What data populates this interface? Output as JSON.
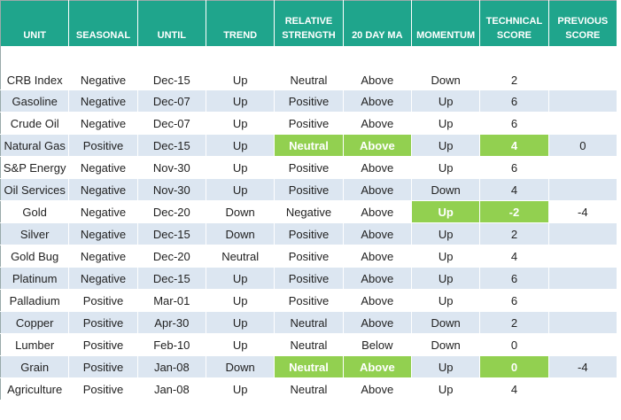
{
  "table": {
    "header": [
      "UNIT",
      "SEASONAL",
      "UNTIL",
      "TREND",
      "RELATIVE STRENGTH",
      "20 DAY MA",
      "MOMENTUM",
      "TECHNICAL SCORE",
      "PREVIOUS SCORE"
    ],
    "rows": [
      [
        "CRB Index",
        "Negative",
        "Dec-15",
        "Up",
        "Neutral",
        "Above",
        "Down",
        "2",
        null
      ],
      [
        "Gasoline",
        "Negative",
        "Dec-07",
        "Up",
        "Positive",
        "Above",
        "Up",
        "6",
        null
      ],
      [
        "Crude Oil",
        "Negative",
        "Dec-07",
        "Up",
        "Positive",
        "Above",
        "Up",
        "6",
        null
      ],
      [
        "Natural Gas",
        "Positive",
        "Dec-15",
        "Up",
        "Neutral",
        "Above",
        "Up",
        "4",
        "0"
      ],
      [
        "S&P Energy",
        "Negative",
        "Nov-30",
        "Up",
        "Positive",
        "Above",
        "Up",
        "6",
        null
      ],
      [
        "Oil Services",
        "Negative",
        "Nov-30",
        "Up",
        "Positive",
        "Above",
        "Down",
        "4",
        null
      ],
      [
        "Gold",
        "Negative",
        "Dec-20",
        "Down",
        "Negative",
        "Above",
        "Up",
        "-2",
        "-4"
      ],
      [
        "Silver",
        "Negative",
        "Dec-15",
        "Down",
        "Positive",
        "Above",
        "Up",
        "2",
        null
      ],
      [
        "Gold Bug",
        "Negative",
        "Dec-20",
        "Neutral",
        "Positive",
        "Above",
        "Up",
        "4",
        null
      ],
      [
        "Platinum",
        "Negative",
        "Dec-15",
        "Up",
        "Positive",
        "Above",
        "Up",
        "6",
        null
      ],
      [
        "Palladium",
        "Positive",
        "Mar-01",
        "Up",
        "Positive",
        "Above",
        "Up",
        "6",
        null
      ],
      [
        "Copper",
        "Positive",
        "Apr-30",
        "Up",
        "Neutral",
        "Above",
        "Down",
        "2",
        null
      ],
      [
        "Lumber",
        "Positive",
        "Feb-10",
        "Up",
        "Neutral",
        "Below",
        "Down",
        "0",
        null
      ],
      [
        "Grain",
        "Positive",
        "Jan-08",
        "Down",
        "Neutral",
        "Above",
        "Up",
        "0",
        "-4"
      ],
      [
        "Agriculture",
        "Positive",
        "Jan-08",
        "Up",
        "Neutral",
        "Above",
        "Up",
        "4",
        null
      ]
    ]
  }
}
